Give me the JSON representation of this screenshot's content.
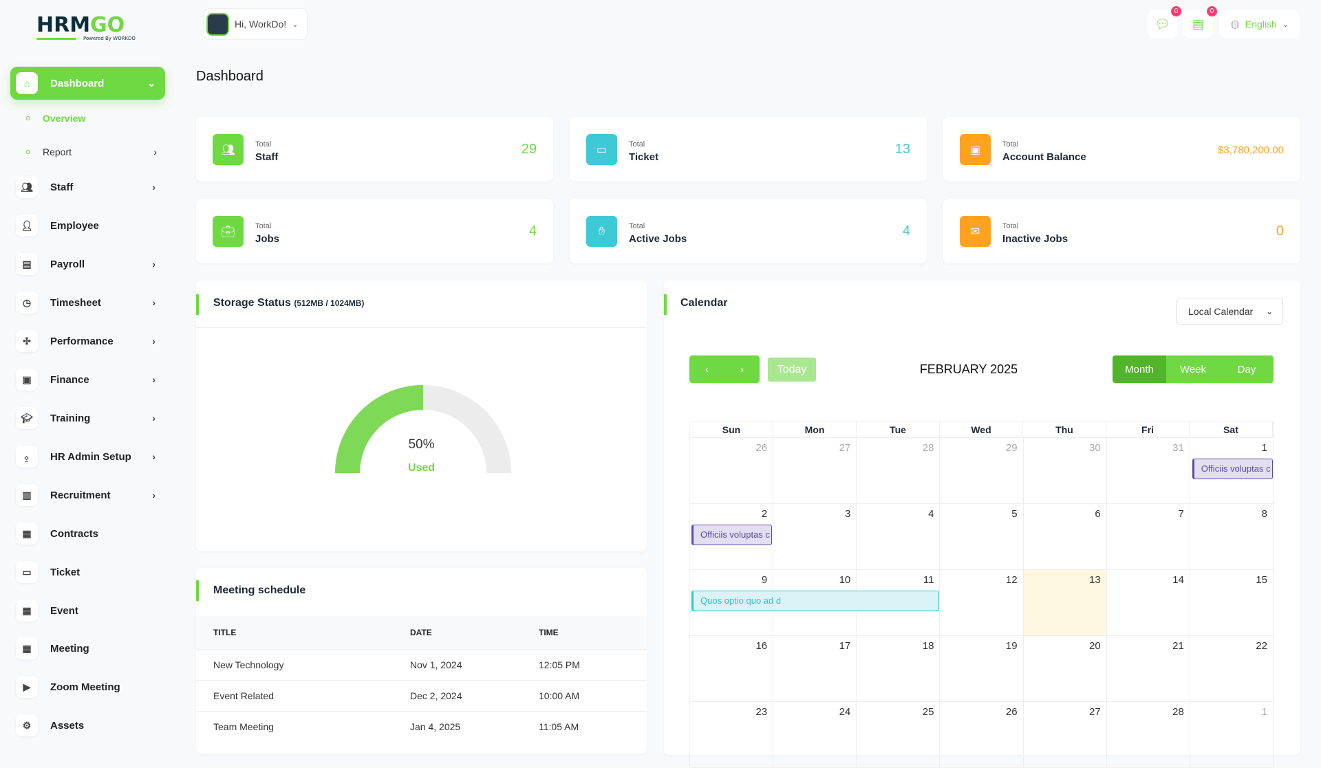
{
  "logo": {
    "text": "HRMGO",
    "tagline": "Powered By WORKDO"
  },
  "header": {
    "greeting": "Hi, WorkDo!",
    "messages_count": "0",
    "notifications_count": "0",
    "language": "English"
  },
  "sidebar": {
    "items": [
      {
        "label": "Dashboard",
        "icon": "home-icon",
        "active": true,
        "chevron": true
      },
      {
        "label": "Staff",
        "icon": "users-icon",
        "chevron": true
      },
      {
        "label": "Employee",
        "icon": "user-icon",
        "chevron": false
      },
      {
        "label": "Payroll",
        "icon": "receipt-icon",
        "chevron": true
      },
      {
        "label": "Timesheet",
        "icon": "clock-icon",
        "chevron": true
      },
      {
        "label": "Performance",
        "icon": "performance-icon",
        "chevron": true
      },
      {
        "label": "Finance",
        "icon": "wallet-icon",
        "chevron": true
      },
      {
        "label": "Training",
        "icon": "graduation-cap-icon",
        "chevron": true
      },
      {
        "label": "HR Admin Setup",
        "icon": "user-plus-icon",
        "chevron": true
      },
      {
        "label": "Recruitment",
        "icon": "clipboard-icon",
        "chevron": true
      },
      {
        "label": "Contracts",
        "icon": "contract-icon",
        "chevron": false
      },
      {
        "label": "Ticket",
        "icon": "ticket-icon",
        "chevron": false
      },
      {
        "label": "Event",
        "icon": "calendar-event-icon",
        "chevron": false
      },
      {
        "label": "Meeting",
        "icon": "calendar-time-icon",
        "chevron": false
      },
      {
        "label": "Zoom Meeting",
        "icon": "video-icon",
        "chevron": false
      },
      {
        "label": "Assets",
        "icon": "gear-icon",
        "chevron": false
      }
    ],
    "subitems": [
      {
        "label": "Overview",
        "active": true
      },
      {
        "label": "Report",
        "chevron": true
      }
    ]
  },
  "page": {
    "title": "Dashboard"
  },
  "stats": [
    {
      "small": "Total",
      "label": "Staff",
      "value": "29",
      "color": "#6fd943",
      "icon": "users-icon"
    },
    {
      "small": "Total",
      "label": "Ticket",
      "value": "13",
      "color": "#3ec9d6",
      "icon": "ticket-icon"
    },
    {
      "small": "Total",
      "label": "Account Balance",
      "value": "$3,780,200.00",
      "color": "#ffa21d",
      "icon": "wallet-icon"
    },
    {
      "small": "Total",
      "label": "Jobs",
      "value": "4",
      "color": "#6fd943",
      "icon": "briefcase-icon"
    },
    {
      "small": "Total",
      "label": "Active Jobs",
      "value": "4",
      "color": "#3ec9d6",
      "icon": "hand-job-icon"
    },
    {
      "small": "Total",
      "label": "Inactive Jobs",
      "value": "0",
      "color": "#ffa21d",
      "icon": "mail-x-icon"
    }
  ],
  "storage": {
    "title": "Storage Status",
    "detail": "(512MB / 1024MB)",
    "percent": 50,
    "percent_label": "50%",
    "used_label": "Used"
  },
  "meetings": {
    "title": "Meeting schedule",
    "columns": [
      "TITLE",
      "DATE",
      "TIME"
    ],
    "rows": [
      [
        "New Technology",
        "Nov 1, 2024",
        "12:05 PM"
      ],
      [
        "Event Related",
        "Dec 2, 2024",
        "10:00 AM"
      ],
      [
        "Team Meeting",
        "Jan 4, 2025",
        "11:05 AM"
      ]
    ]
  },
  "calendar": {
    "title": "Calendar",
    "source": "Local Calendar",
    "month_title": "FEBRUARY 2025",
    "today_label": "Today",
    "views": [
      "Month",
      "Week",
      "Day"
    ],
    "active_view": "Month",
    "weekdays": [
      "Sun",
      "Mon",
      "Tue",
      "Wed",
      "Thu",
      "Fri",
      "Sat"
    ],
    "weeks": [
      [
        "26",
        "27",
        "28",
        "29",
        "30",
        "31",
        "1"
      ],
      [
        "2",
        "3",
        "4",
        "5",
        "6",
        "7",
        "8"
      ],
      [
        "9",
        "10",
        "11",
        "12",
        "13",
        "14",
        "15"
      ],
      [
        "16",
        "17",
        "18",
        "19",
        "20",
        "21",
        "22"
      ],
      [
        "23",
        "24",
        "25",
        "26",
        "27",
        "28",
        "1"
      ]
    ],
    "today": "13",
    "events": [
      {
        "title": "Officiis voluptas c",
        "color": "purple",
        "week": 0,
        "start": 6,
        "span": 1
      },
      {
        "title": "Officiis voluptas c",
        "color": "purple",
        "week": 1,
        "start": 0,
        "span": 1
      },
      {
        "title": "Quos optio quo ad d",
        "color": "cyan",
        "week": 2,
        "start": 0,
        "span": 3
      }
    ]
  }
}
